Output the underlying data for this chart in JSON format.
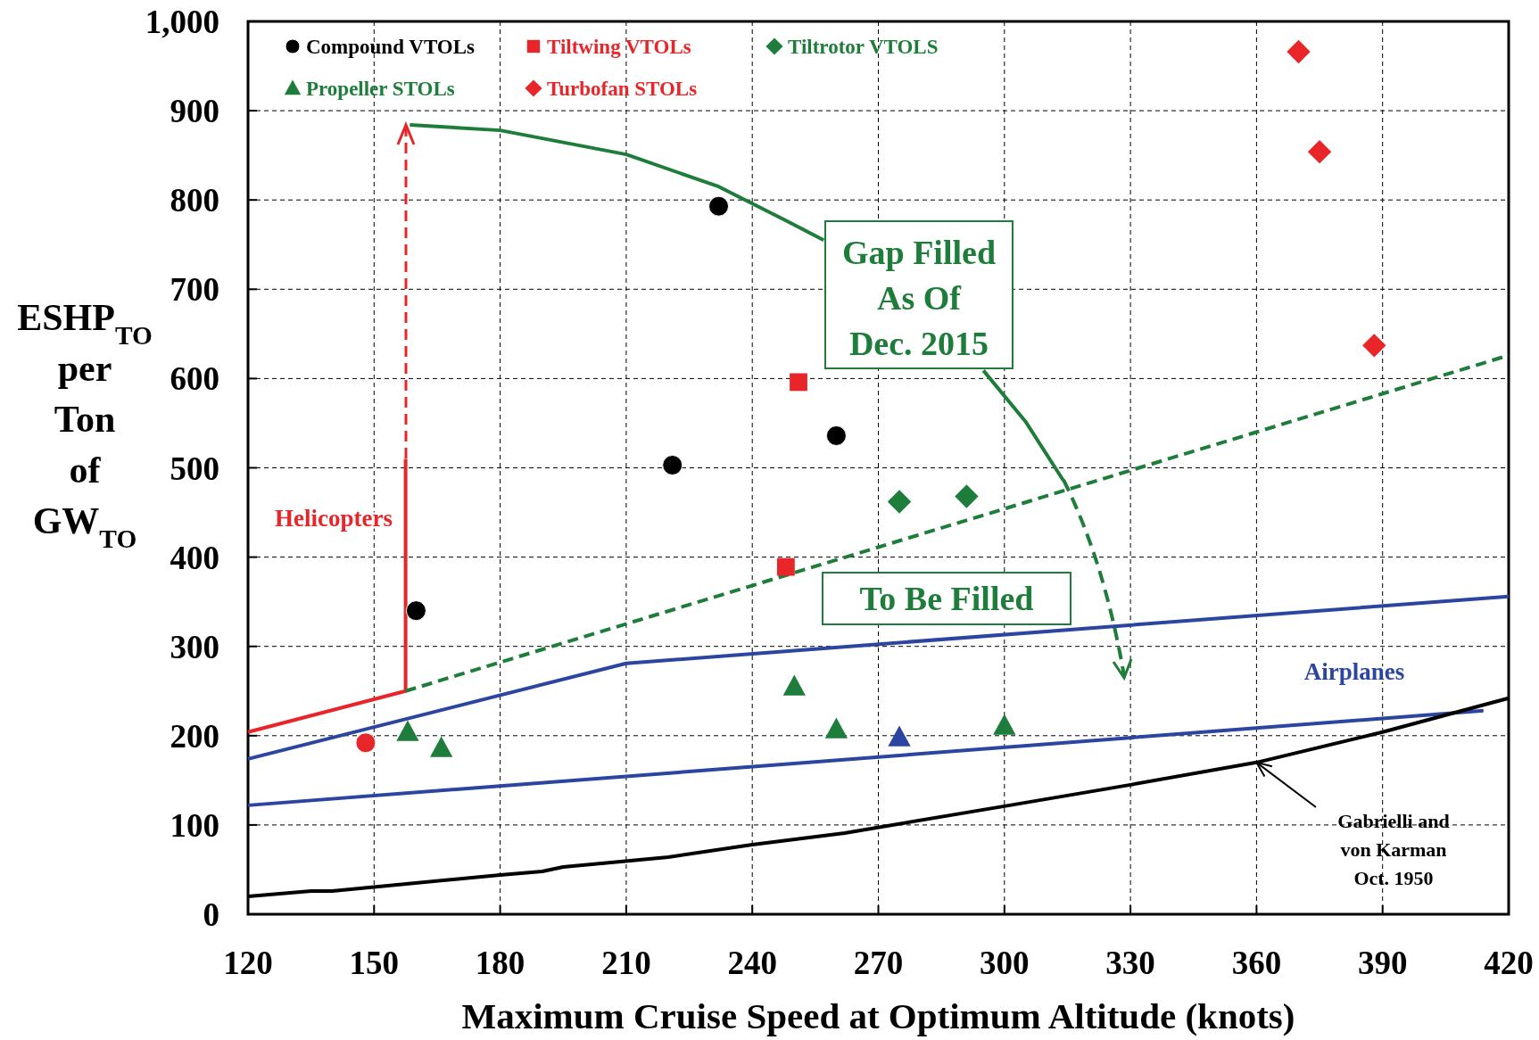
{
  "chart_data": {
    "type": "scatter",
    "xlabel": "Maximum Cruise Speed at Optimum Altitude (knots)",
    "ylabel": "ESHP$_{TO}$ per Ton of GW$_{TO}$",
    "xlim": [
      120,
      420
    ],
    "xticks": [
      120,
      150,
      180,
      210,
      240,
      270,
      300,
      330,
      360,
      390,
      420
    ],
    "ylim": [
      0,
      1000
    ],
    "yticks": [
      0,
      100,
      200,
      300,
      400,
      500,
      600,
      700,
      800,
      900,
      {
        "value": 1000,
        "label": "1,000"
      }
    ],
    "grid": true,
    "legend": "top left",
    "annotations": [
      "Gap Filled As Of Dec. 2015",
      "To Be Filled",
      {
        "text": "Gabrielli and von Karman Oct. 1950",
        "x": 360,
        "y": 170
      }
    ],
    "series": [
      {
        "name": "Compound VTOLs",
        "marker": "circle",
        "color": "#000000",
        "x": [
          160,
          221,
          232,
          260
        ],
        "values": [
          340,
          503,
          793,
          536
        ]
      },
      {
        "name": "Tiltwing VTOLs",
        "marker": "square",
        "color": "#e8262a",
        "x": [
          251,
          248
        ],
        "values": [
          596,
          389
        ]
      },
      {
        "name": "Tiltrotor VTOLS",
        "marker": "diamond",
        "color": "#1e7d3a",
        "x": [
          275,
          291
        ],
        "values": [
          462,
          468
        ]
      },
      {
        "name": "Propeller STOLs",
        "marker": "triangle",
        "color": "#1e7d3a",
        "x": [
          158,
          166,
          250,
          260,
          300
        ],
        "values": [
          204,
          186,
          255,
          207,
          211
        ]
      },
      {
        "name": "Turbofan STOLs",
        "marker": "diamond",
        "color": "#e8262a",
        "x": [
          370,
          375,
          388
        ],
        "values": [
          966,
          854,
          637
        ]
      },
      {
        "marker": "triangle",
        "color": "#2b45a0",
        "x": [
          275
        ],
        "values": [
          198
        ]
      },
      {
        "marker": "circle",
        "color": "#e8262a",
        "x": [
          148
        ],
        "values": [
          192
        ]
      },
      {
        "name": "Helicopters",
        "type": "line",
        "line_style": "solid",
        "color": "#e8262a",
        "x": [
          120,
          157.5,
          157.5
        ],
        "values": [
          204,
          250,
          510
        ]
      },
      {
        "type": "line",
        "line_style": "dashed",
        "color": "#1e7d3a",
        "x": [
          157.5,
          420
        ],
        "values": [
          250,
          626
        ]
      },
      {
        "type": "line",
        "line_style": "solid",
        "color": "#1e7d3a",
        "x": [
          158.5,
          180,
          210,
          232,
          248,
          257,
          275,
          295,
          305,
          314
        ],
        "values": [
          884,
          878,
          851,
          815,
          777,
          755,
          null,
          609,
          552,
          486
        ]
      },
      {
        "name": "Airplanes",
        "type": "line",
        "line_style": "solid",
        "color": "#2b45a0",
        "x": [
          120,
          210,
          420
        ],
        "values": [
          174,
          281,
          356
        ]
      },
      {
        "type": "line",
        "line_style": "solid",
        "color": "#2b45a0",
        "x": [
          120,
          414
        ],
        "values": [
          122,
          228
        ]
      },
      {
        "type": "line",
        "line_style": "solid",
        "color": "#000000",
        "x": [
          120,
          135,
          140,
          180,
          190,
          195,
          220,
          240,
          262,
          300,
          330,
          360,
          390,
          420
        ],
        "values": [
          20,
          26,
          26,
          44,
          48,
          53,
          64,
          78,
          91,
          121,
          145,
          170,
          204,
          242
        ]
      }
    ]
  }
}
